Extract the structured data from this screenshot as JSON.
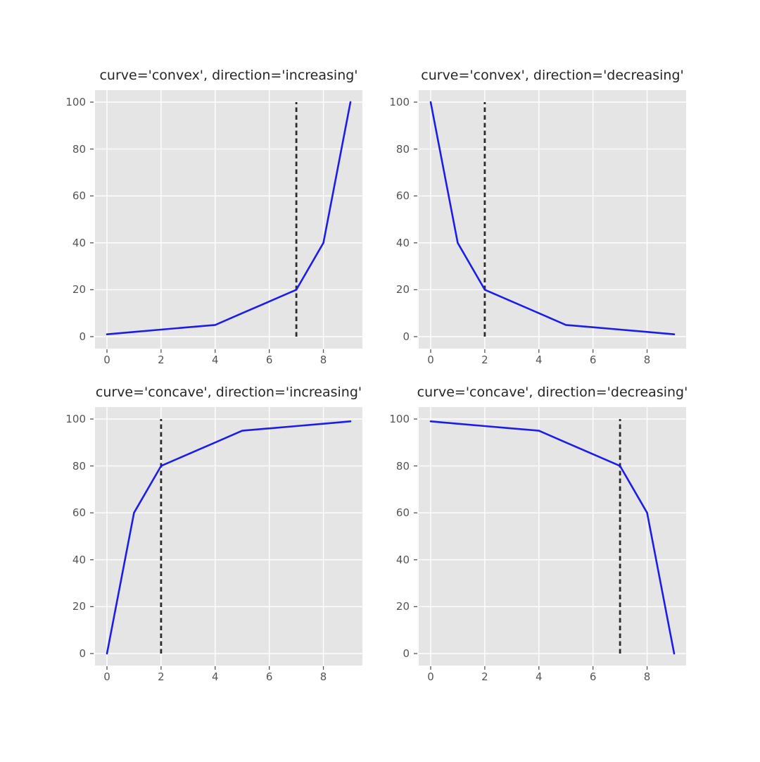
{
  "figure": {
    "background": "#ffffff"
  },
  "style": {
    "axes_bg": "#e5e5e5",
    "grid_color": "#ffffff",
    "tick_color": "#555555",
    "title_color": "#262626",
    "line_color": "#1d1de8",
    "knee_color": "#2b2b2b"
  },
  "chart_data": [
    {
      "type": "line",
      "title": "curve='convex', direction='increasing'",
      "x": [
        0,
        1,
        2,
        3,
        4,
        5,
        6,
        7,
        8,
        9
      ],
      "y": [
        1,
        2,
        3,
        4,
        5,
        10,
        15,
        20,
        40,
        100
      ],
      "knee_x": 7,
      "vline_y": [
        0,
        100
      ],
      "xticks": [
        0,
        2,
        4,
        6,
        8
      ],
      "yticks": [
        0,
        20,
        40,
        60,
        80,
        100
      ],
      "xlim": [
        0,
        9
      ],
      "ylim": [
        0,
        100
      ],
      "xlabel": "",
      "ylabel": "",
      "grid": true,
      "line_style": "solid",
      "knee_line_style": "dashed"
    },
    {
      "type": "line",
      "title": "curve='convex', direction='decreasing'",
      "x": [
        0,
        1,
        2,
        3,
        4,
        5,
        6,
        7,
        8,
        9
      ],
      "y": [
        100,
        40,
        20,
        15,
        10,
        5,
        4,
        3,
        2,
        1
      ],
      "knee_x": 2,
      "vline_y": [
        0,
        100
      ],
      "xticks": [
        0,
        2,
        4,
        6,
        8
      ],
      "yticks": [
        0,
        20,
        40,
        60,
        80,
        100
      ],
      "xlim": [
        0,
        9
      ],
      "ylim": [
        0,
        100
      ],
      "xlabel": "",
      "ylabel": "",
      "grid": true,
      "line_style": "solid",
      "knee_line_style": "dashed"
    },
    {
      "type": "line",
      "title": "curve='concave', direction='increasing'",
      "x": [
        0,
        1,
        2,
        3,
        4,
        5,
        6,
        7,
        8,
        9
      ],
      "y": [
        0,
        60,
        80,
        85,
        90,
        95,
        96,
        97,
        98,
        99
      ],
      "knee_x": 2,
      "vline_y": [
        0,
        100
      ],
      "xticks": [
        0,
        2,
        4,
        6,
        8
      ],
      "yticks": [
        0,
        20,
        40,
        60,
        80,
        100
      ],
      "xlim": [
        0,
        9
      ],
      "ylim": [
        0,
        100
      ],
      "xlabel": "",
      "ylabel": "",
      "grid": true,
      "line_style": "solid",
      "knee_line_style": "dashed"
    },
    {
      "type": "line",
      "title": "curve='concave', direction='decreasing'",
      "x": [
        0,
        1,
        2,
        3,
        4,
        5,
        6,
        7,
        8,
        9
      ],
      "y": [
        99,
        98,
        97,
        96,
        95,
        90,
        85,
        80,
        60,
        0
      ],
      "knee_x": 7,
      "vline_y": [
        0,
        100
      ],
      "xticks": [
        0,
        2,
        4,
        6,
        8
      ],
      "yticks": [
        0,
        20,
        40,
        60,
        80,
        100
      ],
      "xlim": [
        0,
        9
      ],
      "ylim": [
        0,
        100
      ],
      "xlabel": "",
      "ylabel": "",
      "grid": true,
      "line_style": "solid",
      "knee_line_style": "dashed"
    }
  ]
}
